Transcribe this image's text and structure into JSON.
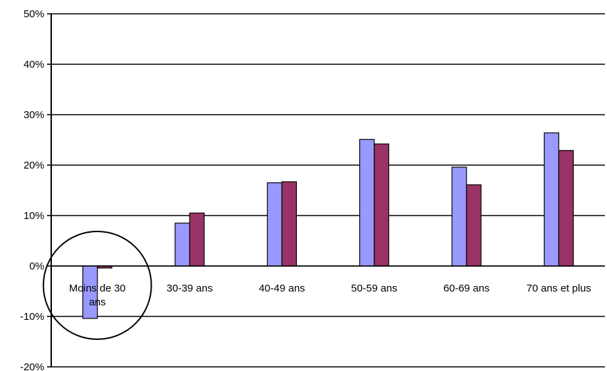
{
  "chart_data": {
    "type": "bar",
    "title": "",
    "xlabel": "",
    "ylabel": "",
    "ylim": [
      -0.2,
      0.5
    ],
    "yticks": [
      -0.2,
      -0.1,
      0,
      0.1,
      0.2,
      0.3,
      0.4,
      0.5
    ],
    "ytick_labels": [
      "-20%",
      "-10%",
      "0%",
      "10%",
      "20%",
      "30%",
      "40%",
      "50%"
    ],
    "grid": true,
    "legend": "none",
    "categories": [
      [
        "Moins de 30",
        "ans"
      ],
      [
        "30-39 ans"
      ],
      [
        "40-49 ans"
      ],
      [
        "50-59 ans"
      ],
      [
        "60-69 ans"
      ],
      [
        "70 ans et plus"
      ]
    ],
    "series": [
      {
        "color": "#9999ff",
        "values": [
          -0.104,
          0.085,
          0.165,
          0.251,
          0.196,
          0.264
        ]
      },
      {
        "color": "#993366",
        "values": [
          -0.004,
          0.105,
          0.167,
          0.242,
          0.161,
          0.229
        ]
      }
    ],
    "annotation": {
      "shape": "circle",
      "category_index": 0
    }
  }
}
